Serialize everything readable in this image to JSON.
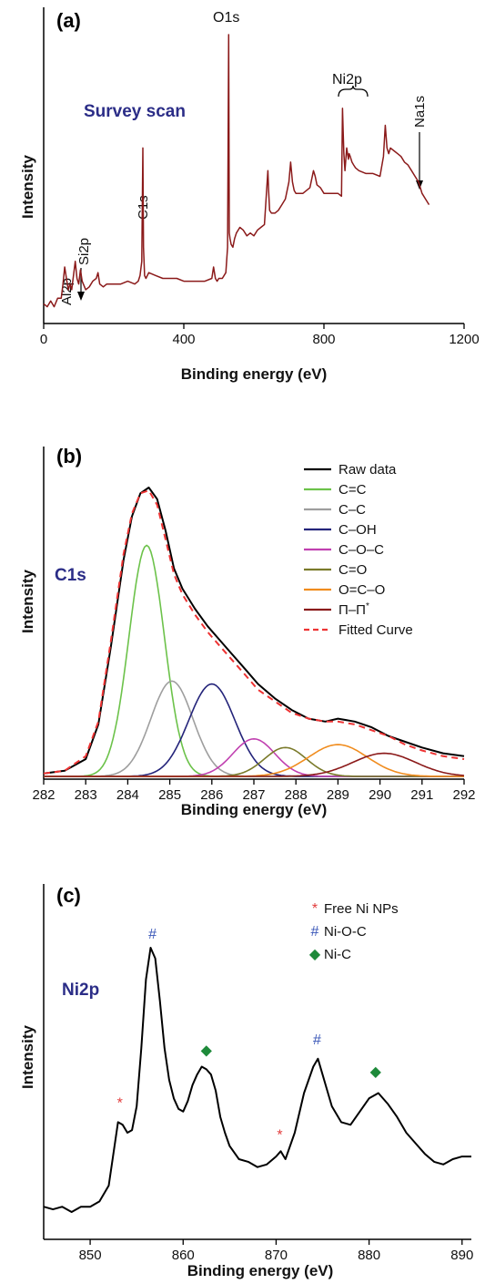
{
  "chart_data": [
    {
      "type": "line",
      "panel": "(a)",
      "subtitle": "Survey scan",
      "xlabel": "Binding energy (eV)",
      "ylabel": "Intensity",
      "xlim": [
        0,
        1200
      ],
      "xticks": [
        0,
        400,
        800,
        1200
      ],
      "color": "#8b1a1a",
      "annotations": [
        "Al2p",
        "Si2p",
        "C1s",
        "O1s",
        "Ni2p",
        "Na1s"
      ],
      "series": [
        {
          "x": [
            0,
            10,
            20,
            30,
            40,
            50,
            55,
            60,
            65,
            70,
            75,
            80,
            90,
            95,
            100,
            105,
            110,
            120,
            130,
            140,
            150,
            155,
            160,
            170,
            180,
            200,
            220,
            240,
            260,
            270,
            275,
            280,
            283,
            285,
            288,
            292,
            300,
            320,
            340,
            360,
            380,
            400,
            420,
            440,
            460,
            480,
            485,
            490,
            495,
            500,
            510,
            520,
            525,
            528,
            530,
            532,
            535,
            540,
            545,
            550,
            560,
            570,
            580,
            590,
            600,
            610,
            620,
            630,
            640,
            642,
            645,
            650,
            660,
            670,
            680,
            690,
            700,
            705,
            710,
            715,
            720,
            740,
            760,
            770,
            775,
            780,
            790,
            800,
            820,
            840,
            850,
            853,
            855,
            857,
            860,
            865,
            870,
            872,
            875,
            880,
            885,
            890,
            900,
            920,
            940,
            960,
            970,
            975,
            980,
            985,
            990,
            1000,
            1010,
            1020,
            1030,
            1040,
            1050,
            1060,
            1070,
            1075,
            1080,
            1090,
            1100
          ],
          "y": [
            5,
            4,
            6,
            4,
            7,
            7,
            12,
            18,
            14,
            10,
            12,
            10,
            20,
            14,
            12,
            17,
            13,
            10,
            11,
            13,
            14,
            16,
            12,
            11,
            12,
            12,
            12,
            13,
            12,
            13,
            15,
            20,
            60,
            25,
            15,
            14,
            16,
            15,
            14,
            14,
            14,
            13,
            13,
            13,
            13,
            14,
            18,
            14,
            13,
            14,
            14,
            16,
            25,
            100,
            30,
            28,
            26,
            25,
            28,
            30,
            32,
            31,
            29,
            30,
            29,
            31,
            32,
            33,
            52,
            45,
            38,
            37,
            37,
            38,
            40,
            42,
            48,
            55,
            48,
            45,
            44,
            44,
            46,
            52,
            50,
            47,
            46,
            44,
            44,
            44,
            43,
            74,
            65,
            58,
            52,
            60,
            56,
            58,
            57,
            55,
            54,
            53,
            52,
            51,
            51,
            50,
            57,
            68,
            60,
            58,
            60,
            59,
            58,
            57,
            55,
            54,
            52,
            50,
            48,
            46,
            44,
            42,
            40
          ]
        }
      ]
    },
    {
      "type": "line",
      "panel": "(b)",
      "subtitle": "C1s",
      "xlabel": "Binding energy (eV)",
      "ylabel": "Intensity",
      "xlim": [
        282,
        292
      ],
      "xticks": [
        282,
        283,
        284,
        285,
        286,
        287,
        288,
        289,
        290,
        291,
        292
      ],
      "legend_position": "top-right",
      "series": [
        {
          "name": "Raw data",
          "color": "#000000",
          "style": "solid",
          "x": [
            282,
            282.5,
            283,
            283.3,
            283.6,
            283.9,
            284.1,
            284.3,
            284.5,
            284.7,
            284.9,
            285.1,
            285.3,
            285.6,
            285.9,
            286.2,
            286.5,
            286.8,
            287.1,
            287.5,
            287.9,
            288.3,
            288.7,
            289,
            289.4,
            289.8,
            290.2,
            290.6,
            291,
            291.5,
            292
          ],
          "y": [
            0.01,
            0.02,
            0.06,
            0.18,
            0.45,
            0.75,
            0.9,
            0.98,
            1.0,
            0.96,
            0.85,
            0.72,
            0.65,
            0.58,
            0.52,
            0.47,
            0.42,
            0.37,
            0.32,
            0.27,
            0.23,
            0.2,
            0.19,
            0.2,
            0.19,
            0.17,
            0.14,
            0.12,
            0.1,
            0.08,
            0.07
          ]
        },
        {
          "name": "C=C",
          "color": "#6cc24a",
          "style": "solid",
          "center": 284.45,
          "amplitude": 0.8,
          "width": 0.42
        },
        {
          "name": "C–C",
          "color": "#9e9e9e",
          "style": "solid",
          "center": 285.05,
          "amplitude": 0.33,
          "width": 0.5
        },
        {
          "name": "C–OH",
          "color": "#24247a",
          "style": "solid",
          "center": 286.0,
          "amplitude": 0.32,
          "width": 0.55
        },
        {
          "name": "C–O–C",
          "color": "#c040b0",
          "style": "solid",
          "center": 287.0,
          "amplitude": 0.13,
          "width": 0.5
        },
        {
          "name": "C=O",
          "color": "#7a7a2a",
          "style": "solid",
          "center": 287.75,
          "amplitude": 0.1,
          "width": 0.5
        },
        {
          "name": "O=C–O",
          "color": "#f08c1e",
          "style": "solid",
          "center": 289.0,
          "amplitude": 0.11,
          "width": 0.7
        },
        {
          "name": "Π–Π",
          "superscript": "*",
          "color": "#8b1a1a",
          "style": "solid",
          "center": 290.1,
          "amplitude": 0.08,
          "width": 0.75
        },
        {
          "name": "Fitted Curve",
          "color": "#ee3333",
          "style": "dashed",
          "x": [
            282,
            282.5,
            283,
            283.3,
            283.6,
            283.9,
            284.1,
            284.3,
            284.5,
            284.7,
            284.9,
            285.1,
            285.3,
            285.6,
            285.9,
            286.2,
            286.5,
            286.8,
            287.1,
            287.5,
            287.9,
            288.3,
            288.7,
            289,
            289.4,
            289.8,
            290.2,
            290.6,
            291,
            291.5,
            292
          ],
          "y": [
            0.01,
            0.02,
            0.07,
            0.19,
            0.47,
            0.77,
            0.91,
            0.98,
            0.99,
            0.94,
            0.82,
            0.7,
            0.63,
            0.56,
            0.5,
            0.45,
            0.4,
            0.35,
            0.3,
            0.26,
            0.22,
            0.2,
            0.19,
            0.19,
            0.18,
            0.16,
            0.14,
            0.11,
            0.09,
            0.07,
            0.06
          ]
        }
      ]
    },
    {
      "type": "line",
      "panel": "(c)",
      "subtitle": "Ni2p",
      "xlabel": "Binding energy (eV)",
      "ylabel": "Intensity",
      "xlim": [
        845,
        891
      ],
      "xticks": [
        850,
        860,
        870,
        880,
        890
      ],
      "color": "#000000",
      "legend_position": "top-right",
      "legend": [
        {
          "symbol": "*",
          "label": "Free Ni NPs",
          "color": "#e23b3b"
        },
        {
          "symbol": "#",
          "label": "Ni-O-C",
          "color": "#3a57b8"
        },
        {
          "symbol": "◆",
          "label": "Ni-C",
          "color": "#1e8a3a"
        }
      ],
      "markers": [
        {
          "symbol": "*",
          "x": 853.2,
          "y": 0.36,
          "color": "#e23b3b"
        },
        {
          "symbol": "#",
          "x": 856.7,
          "y": 1.0,
          "color": "#3a57b8"
        },
        {
          "symbol": "◆",
          "x": 862.5,
          "y": 0.56,
          "color": "#1e8a3a"
        },
        {
          "symbol": "*",
          "x": 870.4,
          "y": 0.24,
          "color": "#e23b3b"
        },
        {
          "symbol": "#",
          "x": 874.4,
          "y": 0.6,
          "color": "#3a57b8"
        },
        {
          "symbol": "◆",
          "x": 880.7,
          "y": 0.48,
          "color": "#1e8a3a"
        }
      ],
      "series": [
        {
          "x": [
            845,
            846,
            847,
            848,
            849,
            850,
            851,
            852,
            852.5,
            853,
            853.5,
            854,
            854.5,
            855,
            855.5,
            856,
            856.5,
            857,
            857.5,
            858,
            858.5,
            859,
            859.5,
            860,
            860.5,
            861,
            861.5,
            862,
            862.5,
            863,
            863.5,
            864,
            864.5,
            865,
            866,
            867,
            868,
            869,
            870,
            870.5,
            871,
            872,
            873,
            874,
            874.5,
            875,
            875.5,
            876,
            877,
            878,
            879,
            880,
            881,
            882,
            883,
            884,
            885,
            886,
            887,
            888,
            889,
            890,
            891
          ],
          "y": [
            0.02,
            0.01,
            0.02,
            0.0,
            0.02,
            0.02,
            0.04,
            0.1,
            0.22,
            0.34,
            0.33,
            0.3,
            0.31,
            0.4,
            0.62,
            0.88,
            1.0,
            0.96,
            0.8,
            0.62,
            0.5,
            0.43,
            0.39,
            0.38,
            0.42,
            0.48,
            0.52,
            0.55,
            0.54,
            0.52,
            0.46,
            0.36,
            0.3,
            0.25,
            0.2,
            0.19,
            0.17,
            0.18,
            0.21,
            0.23,
            0.2,
            0.3,
            0.45,
            0.55,
            0.58,
            0.52,
            0.46,
            0.4,
            0.34,
            0.33,
            0.38,
            0.43,
            0.45,
            0.41,
            0.36,
            0.3,
            0.26,
            0.22,
            0.19,
            0.18,
            0.2,
            0.21,
            0.21
          ]
        }
      ]
    }
  ]
}
